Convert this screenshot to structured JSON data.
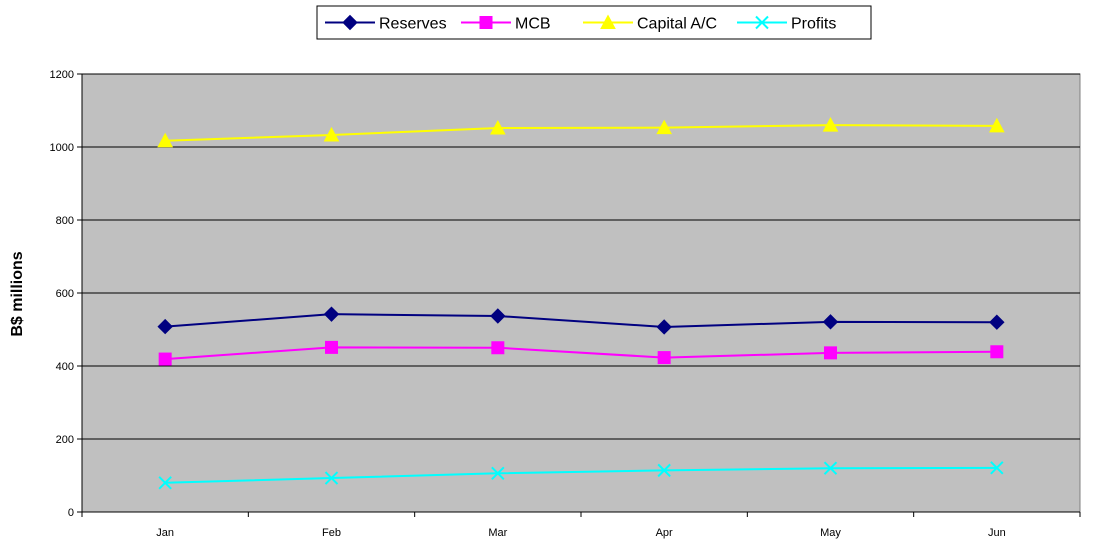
{
  "chart_data": {
    "type": "line",
    "title": "",
    "xlabel": "",
    "ylabel": "B$ millions",
    "categories": [
      "Jan",
      "Feb",
      "Mar",
      "Apr",
      "May",
      "Jun"
    ],
    "ylim": [
      0,
      1200
    ],
    "yticks": [
      0,
      200,
      400,
      600,
      800,
      1000,
      1200
    ],
    "grid": "horizontal",
    "plot_background": "#c0c0c0",
    "legend_position": "top-center",
    "series": [
      {
        "name": "Reserves",
        "color": "#000080",
        "marker": "diamond",
        "values": [
          508,
          542,
          537,
          507,
          521,
          520
        ]
      },
      {
        "name": "MCB",
        "color": "#ff00ff",
        "marker": "square",
        "values": [
          419,
          451,
          450,
          423,
          436,
          439
        ]
      },
      {
        "name": "Capital A/C",
        "color": "#ffff00",
        "marker": "triangle",
        "values": [
          1017,
          1033,
          1052,
          1053,
          1060,
          1058
        ]
      },
      {
        "name": "Profits",
        "color": "#00ffff",
        "marker": "x",
        "values": [
          80,
          93,
          106,
          114,
          120,
          121
        ]
      }
    ]
  }
}
